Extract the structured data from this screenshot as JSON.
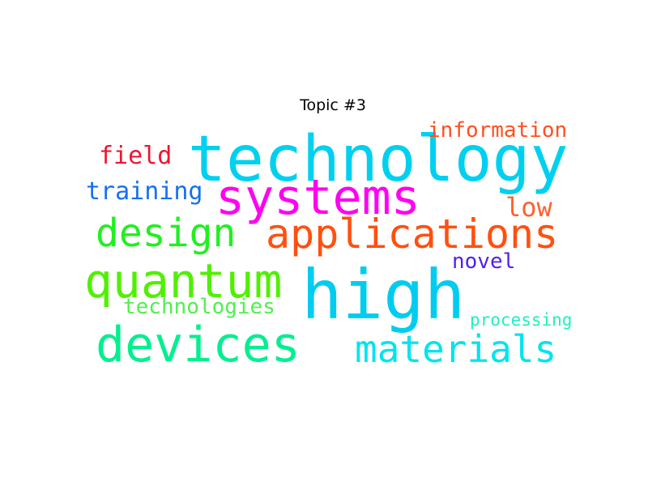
{
  "title": "Topic #3",
  "words": [
    {
      "text": "technology",
      "color": "#00d0f0"
    },
    {
      "text": "systems",
      "color": "#ff00f0"
    },
    {
      "text": "applications",
      "color": "#ff5010"
    },
    {
      "text": "high",
      "color": "#00ccf0"
    },
    {
      "text": "quantum",
      "color": "#50f000"
    },
    {
      "text": "devices",
      "color": "#00f090"
    },
    {
      "text": "design",
      "color": "#20f020"
    },
    {
      "text": "materials",
      "color": "#00e4f0"
    },
    {
      "text": "training",
      "color": "#1570f0"
    },
    {
      "text": "field",
      "color": "#f01530"
    },
    {
      "text": "information",
      "color": "#ff5020"
    },
    {
      "text": "low",
      "color": "#ff6030"
    },
    {
      "text": "novel",
      "color": "#5020f0"
    },
    {
      "text": "technologies",
      "color": "#50f050"
    },
    {
      "text": "processing",
      "color": "#20f0c0"
    }
  ]
}
